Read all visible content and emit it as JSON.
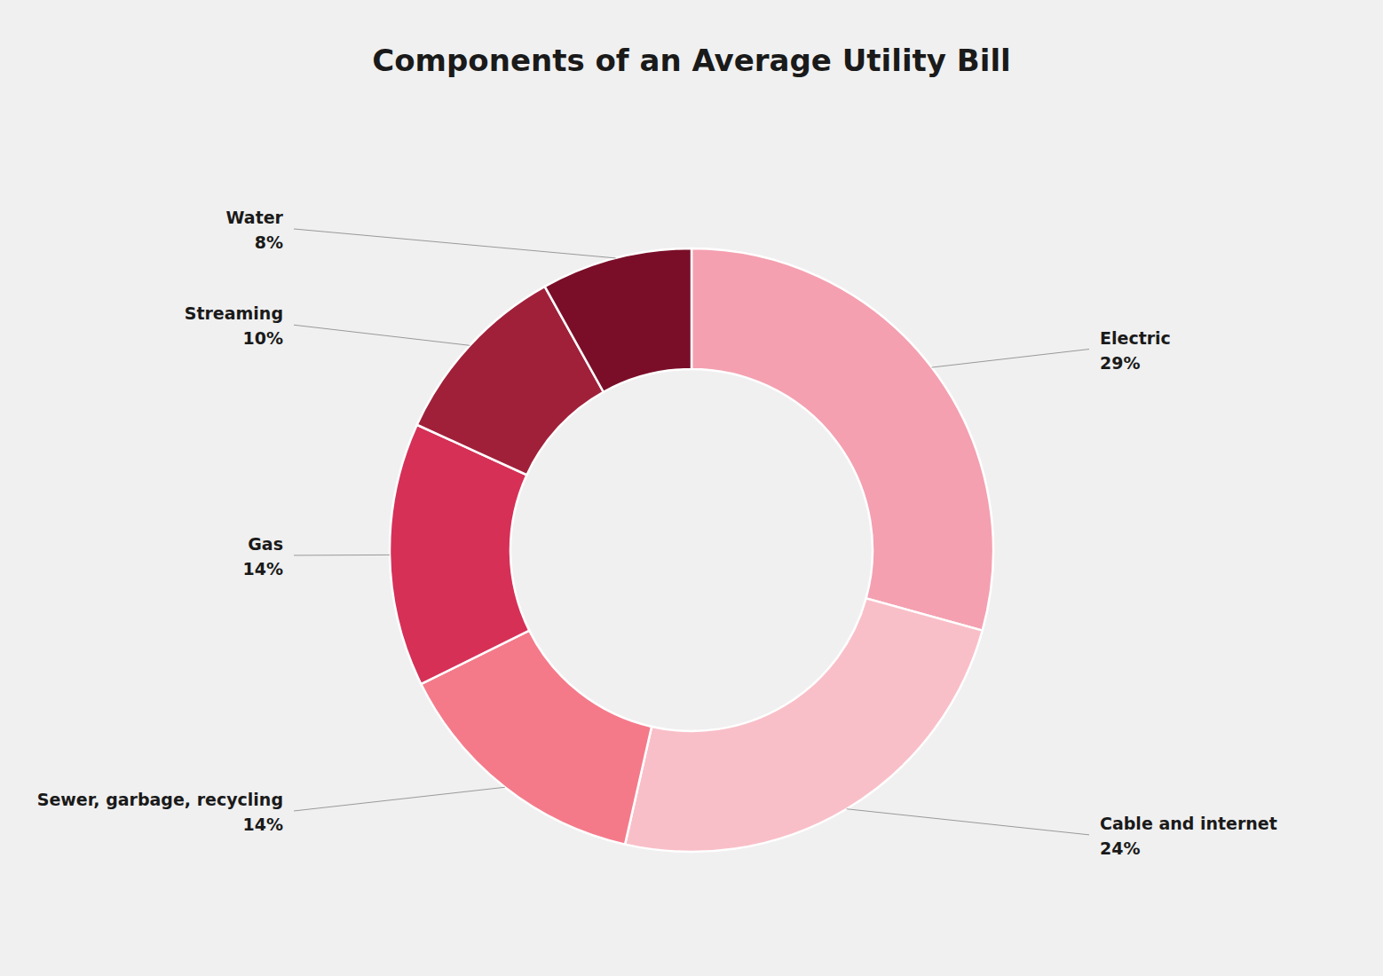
{
  "chart_data": {
    "type": "pie",
    "title": "Components of an Average Utility Bill",
    "categories": [
      "Electric",
      "Cable and internet",
      "Sewer, garbage, recycling",
      "Gas",
      "Streaming",
      "Water"
    ],
    "values": [
      29,
      24,
      14,
      14,
      10,
      8
    ],
    "value_labels": [
      "29%",
      "24%",
      "14%",
      "14%",
      "10%",
      "8%"
    ],
    "colors": [
      "#f4a0b0",
      "#f9bfc8",
      "#f47a8a",
      "#d63057",
      "#a0203a",
      "#7a0e28"
    ],
    "data_labels": true
  }
}
